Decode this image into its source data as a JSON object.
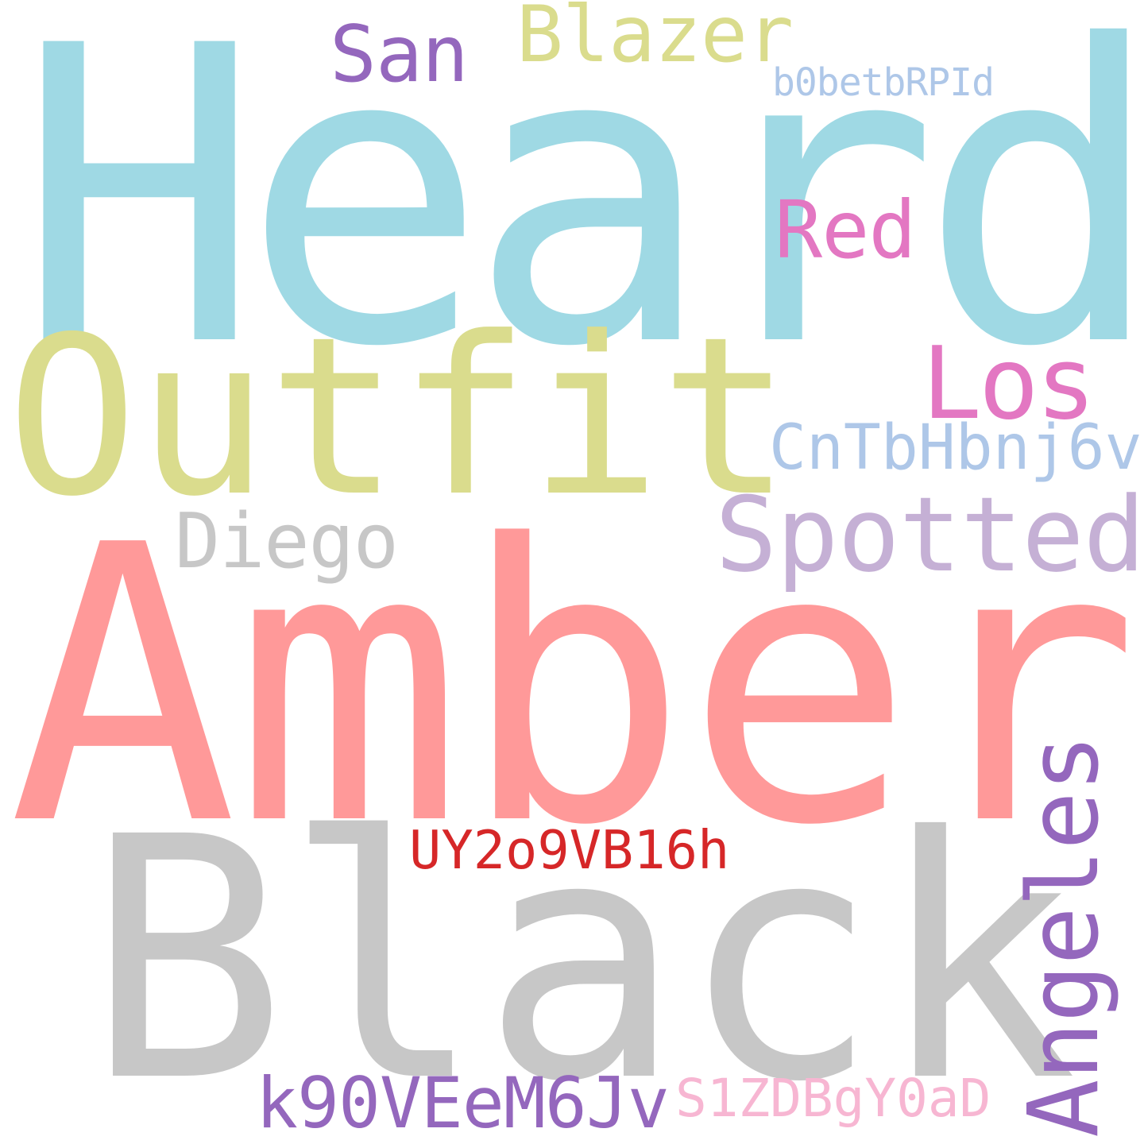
{
  "words": [
    {
      "id": "heard",
      "text": "Heard",
      "color": "#9fd9e4"
    },
    {
      "id": "outfit",
      "text": "Outfit",
      "color": "#dadc8d"
    },
    {
      "id": "amber",
      "text": "Amber",
      "color": "#ff9999"
    },
    {
      "id": "black",
      "text": "Black",
      "color": "#c7c7c7"
    },
    {
      "id": "blazer",
      "text": "Blazer",
      "color": "#dadc8d"
    },
    {
      "id": "san",
      "text": "San",
      "color": "#9467bd"
    },
    {
      "id": "red",
      "text": "Red",
      "color": "#e377c2"
    },
    {
      "id": "los",
      "text": "Los",
      "color": "#e377c2"
    },
    {
      "id": "spotted",
      "text": "Spotted",
      "color": "#c5b0d5"
    },
    {
      "id": "diego",
      "text": "Diego",
      "color": "#c7c7c7"
    },
    {
      "id": "angeles",
      "text": "Angeles",
      "color": "#9467bd"
    },
    {
      "id": "b0betbrpid",
      "text": "b0betbRPId",
      "color": "#aec7e8"
    },
    {
      "id": "cntbhbnj6v",
      "text": "CnTbHbnj6v",
      "color": "#aec7e8"
    },
    {
      "id": "uy2o9vb16h",
      "text": "UY2o9VB16h",
      "color": "#d62728"
    },
    {
      "id": "k90veem6jv",
      "text": "k90VEeM6Jv",
      "color": "#9467bd"
    },
    {
      "id": "s1zdbgy0ad",
      "text": "S1ZDBgY0aD",
      "color": "#f7b6d2"
    }
  ]
}
